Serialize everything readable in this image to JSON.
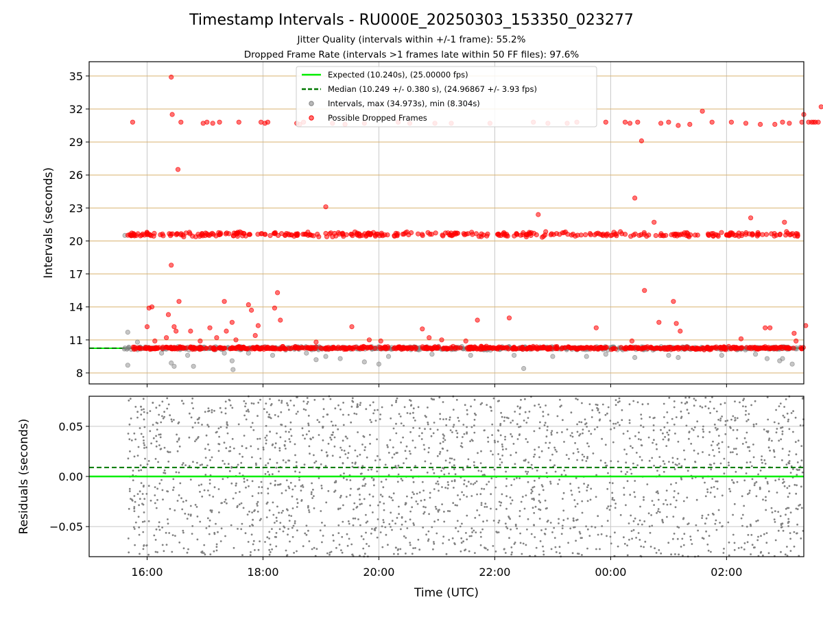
{
  "figure": {
    "title": "Timestamp Intervals - RU000E_20250303_153350_023277",
    "subtitle_1": "Jitter Quality (intervals within +/-1 frame): 55.2%",
    "subtitle_2": "Dropped Frame Rate (intervals >1 frames late within 50 FF files): 97.6%"
  },
  "colors": {
    "expected": "#00ee00",
    "median": "#007700",
    "interval_points": "#808080",
    "dropped_points": "#ff0000",
    "y_grid": "#d9b26f",
    "x_grid": "#c8c8c8"
  },
  "chart_data": [
    {
      "type": "scatter",
      "panel": "top",
      "ylabel": "Intervals (seconds)",
      "xlabel": "",
      "x_range": [
        "15:00",
        "03:20"
      ],
      "ylim": [
        7,
        36.3
      ],
      "x_ticks": [
        "16:00",
        "18:00",
        "20:00",
        "22:00",
        "00:00",
        "02:00"
      ],
      "y_ticks": [
        8,
        11,
        14,
        17,
        20,
        23,
        26,
        29,
        32,
        35
      ],
      "grid": "on",
      "legend_position": "top-center",
      "series": [
        {
          "name": "Expected (10.240s), (25.00000 fps)",
          "kind": "hline",
          "y": 10.24
        },
        {
          "name": "Median (10.249 +/- 0.380 s), (24.96867 +/- 3.93 fps)",
          "kind": "dashed-hline",
          "y": 10.249
        },
        {
          "name": "Intervals, max (34.973s), min (8.304s)",
          "kind": "points",
          "main_band": {
            "x_start": "15:35",
            "x_end": "03:20",
            "y_center": 10.24,
            "y_spread": 0.25,
            "count": 700
          },
          "outliers": [
            [
              "15:40",
              11.7
            ],
            [
              "15:40",
              8.7
            ],
            [
              "15:37",
              20.5
            ],
            [
              "15:45",
              20.5
            ],
            [
              "15:50",
              10.8
            ],
            [
              "16:15",
              9.8
            ],
            [
              "16:25",
              8.9
            ],
            [
              "16:28",
              8.6
            ],
            [
              "16:42",
              9.6
            ],
            [
              "16:48",
              8.6
            ],
            [
              "17:20",
              9.8
            ],
            [
              "17:28",
              9.1
            ],
            [
              "17:29",
              8.3
            ],
            [
              "17:45",
              9.8
            ],
            [
              "18:10",
              9.6
            ],
            [
              "18:45",
              9.8
            ],
            [
              "18:55",
              9.2
            ],
            [
              "19:05",
              9.5
            ],
            [
              "19:20",
              9.3
            ],
            [
              "19:45",
              9.0
            ],
            [
              "20:00",
              8.8
            ],
            [
              "20:10",
              9.5
            ],
            [
              "20:55",
              9.7
            ],
            [
              "21:35",
              9.6
            ],
            [
              "22:20",
              9.6
            ],
            [
              "22:30",
              8.4
            ],
            [
              "23:00",
              9.5
            ],
            [
              "23:35",
              9.5
            ],
            [
              "23:55",
              9.7
            ],
            [
              "00:25",
              9.4
            ],
            [
              "01:00",
              9.6
            ],
            [
              "01:10",
              9.4
            ],
            [
              "01:55",
              9.6
            ],
            [
              "02:30",
              9.7
            ],
            [
              "02:42",
              9.3
            ],
            [
              "02:55",
              9.1
            ],
            [
              "02:58",
              9.3
            ],
            [
              "03:08",
              8.8
            ]
          ]
        },
        {
          "name": "Possible Dropped Frames",
          "kind": "points",
          "band_10": {
            "x_start": "15:45",
            "x_end": "03:20",
            "y_center": 10.26,
            "y_spread": 0.22,
            "count": 650
          },
          "band_20": {
            "x_start": "15:40",
            "x_end": "03:20",
            "y_center": 20.6,
            "y_spread": 0.35,
            "count": 380
          },
          "outliers": [
            [
              "15:45",
              30.8
            ],
            [
              "16:00",
              12.2
            ],
            [
              "16:02",
              13.9
            ],
            [
              "16:05",
              14.0
            ],
            [
              "16:08",
              10.9
            ],
            [
              "16:20",
              11.2
            ],
            [
              "16:22",
              13.3
            ],
            [
              "16:25",
              17.8
            ],
            [
              "16:25",
              34.9
            ],
            [
              "16:26",
              31.5
            ],
            [
              "16:28",
              12.2
            ],
            [
              "16:30",
              11.8
            ],
            [
              "16:32",
              26.5
            ],
            [
              "16:33",
              14.5
            ],
            [
              "16:35",
              30.8
            ],
            [
              "16:45",
              11.8
            ],
            [
              "16:55",
              10.9
            ],
            [
              "16:58",
              30.7
            ],
            [
              "17:05",
              12.1
            ],
            [
              "17:02",
              30.8
            ],
            [
              "17:08",
              30.7
            ],
            [
              "17:12",
              11.2
            ],
            [
              "17:15",
              30.8
            ],
            [
              "17:20",
              14.5
            ],
            [
              "17:22",
              11.8
            ],
            [
              "17:28",
              12.6
            ],
            [
              "17:32",
              11.0
            ],
            [
              "17:35",
              30.8
            ],
            [
              "17:45",
              14.2
            ],
            [
              "17:48",
              13.7
            ],
            [
              "17:52",
              11.4
            ],
            [
              "17:55",
              12.3
            ],
            [
              "17:58",
              30.8
            ],
            [
              "18:02",
              30.7
            ],
            [
              "18:05",
              30.8
            ],
            [
              "18:12",
              13.9
            ],
            [
              "18:15",
              15.3
            ],
            [
              "18:18",
              12.8
            ],
            [
              "18:35",
              30.7
            ],
            [
              "18:38",
              30.6
            ],
            [
              "18:42",
              30.8
            ],
            [
              "18:55",
              10.8
            ],
            [
              "19:05",
              23.1
            ],
            [
              "19:12",
              30.7
            ],
            [
              "19:25",
              30.6
            ],
            [
              "19:32",
              12.2
            ],
            [
              "19:45",
              30.7
            ],
            [
              "19:50",
              11.0
            ],
            [
              "20:02",
              10.9
            ],
            [
              "20:20",
              30.8
            ],
            [
              "20:32",
              30.7
            ],
            [
              "20:45",
              12.0
            ],
            [
              "20:52",
              11.2
            ],
            [
              "20:58",
              30.7
            ],
            [
              "21:05",
              11.0
            ],
            [
              "21:15",
              30.7
            ],
            [
              "21:30",
              10.9
            ],
            [
              "21:42",
              12.8
            ],
            [
              "21:55",
              30.7
            ],
            [
              "22:15",
              13.0
            ],
            [
              "22:40",
              30.8
            ],
            [
              "22:45",
              22.4
            ],
            [
              "22:55",
              30.7
            ],
            [
              "23:15",
              30.7
            ],
            [
              "23:25",
              30.8
            ],
            [
              "23:45",
              12.1
            ],
            [
              "23:55",
              30.8
            ],
            [
              "00:15",
              30.8
            ],
            [
              "00:20",
              30.7
            ],
            [
              "00:22",
              10.9
            ],
            [
              "00:25",
              23.9
            ],
            [
              "00:28",
              30.8
            ],
            [
              "00:32",
              29.1
            ],
            [
              "00:35",
              15.5
            ],
            [
              "00:45",
              21.7
            ],
            [
              "00:50",
              12.6
            ],
            [
              "00:52",
              30.7
            ],
            [
              "01:00",
              30.8
            ],
            [
              "01:05",
              14.5
            ],
            [
              "01:08",
              12.5
            ],
            [
              "01:10",
              30.5
            ],
            [
              "01:12",
              11.8
            ],
            [
              "01:22",
              30.6
            ],
            [
              "01:35",
              31.8
            ],
            [
              "01:45",
              30.8
            ],
            [
              "02:05",
              30.8
            ],
            [
              "02:15",
              11.1
            ],
            [
              "02:20",
              30.7
            ],
            [
              "02:25",
              22.1
            ],
            [
              "02:35",
              30.6
            ],
            [
              "02:40",
              12.1
            ],
            [
              "02:45",
              12.1
            ],
            [
              "02:50",
              30.6
            ],
            [
              "02:58",
              30.8
            ],
            [
              "03:00",
              21.7
            ],
            [
              "03:05",
              30.7
            ],
            [
              "03:10",
              11.6
            ],
            [
              "03:12",
              10.9
            ],
            [
              "03:18",
              30.8
            ],
            [
              "03:20",
              31.5
            ],
            [
              "03:22",
              12.3
            ],
            [
              "03:25",
              30.8
            ],
            [
              "03:28",
              30.8
            ],
            [
              "03:30",
              30.8
            ],
            [
              "03:32",
              30.8
            ],
            [
              "03:35",
              30.8
            ],
            [
              "03:38",
              32.2
            ]
          ]
        }
      ]
    },
    {
      "type": "scatter",
      "panel": "bottom",
      "ylabel": "Residuals (seconds)",
      "xlabel": "Time (UTC)",
      "x_range": [
        "15:00",
        "03:20"
      ],
      "ylim": [
        -0.08,
        0.08
      ],
      "y_ticks": [
        0.05,
        0.0,
        -0.05
      ],
      "y_tick_labels": [
        "0.05",
        "0.00",
        "−0.05"
      ],
      "x_ticks": [
        "16:00",
        "18:00",
        "20:00",
        "22:00",
        "00:00",
        "02:00"
      ],
      "grid": "on",
      "series": [
        {
          "kind": "hline",
          "y": 0.0
        },
        {
          "kind": "dashed-hline",
          "y": 0.009
        },
        {
          "kind": "points",
          "x_start": "15:40",
          "x_end": "03:20",
          "y_min": -0.08,
          "y_max": 0.08,
          "count": 2200
        }
      ]
    }
  ]
}
